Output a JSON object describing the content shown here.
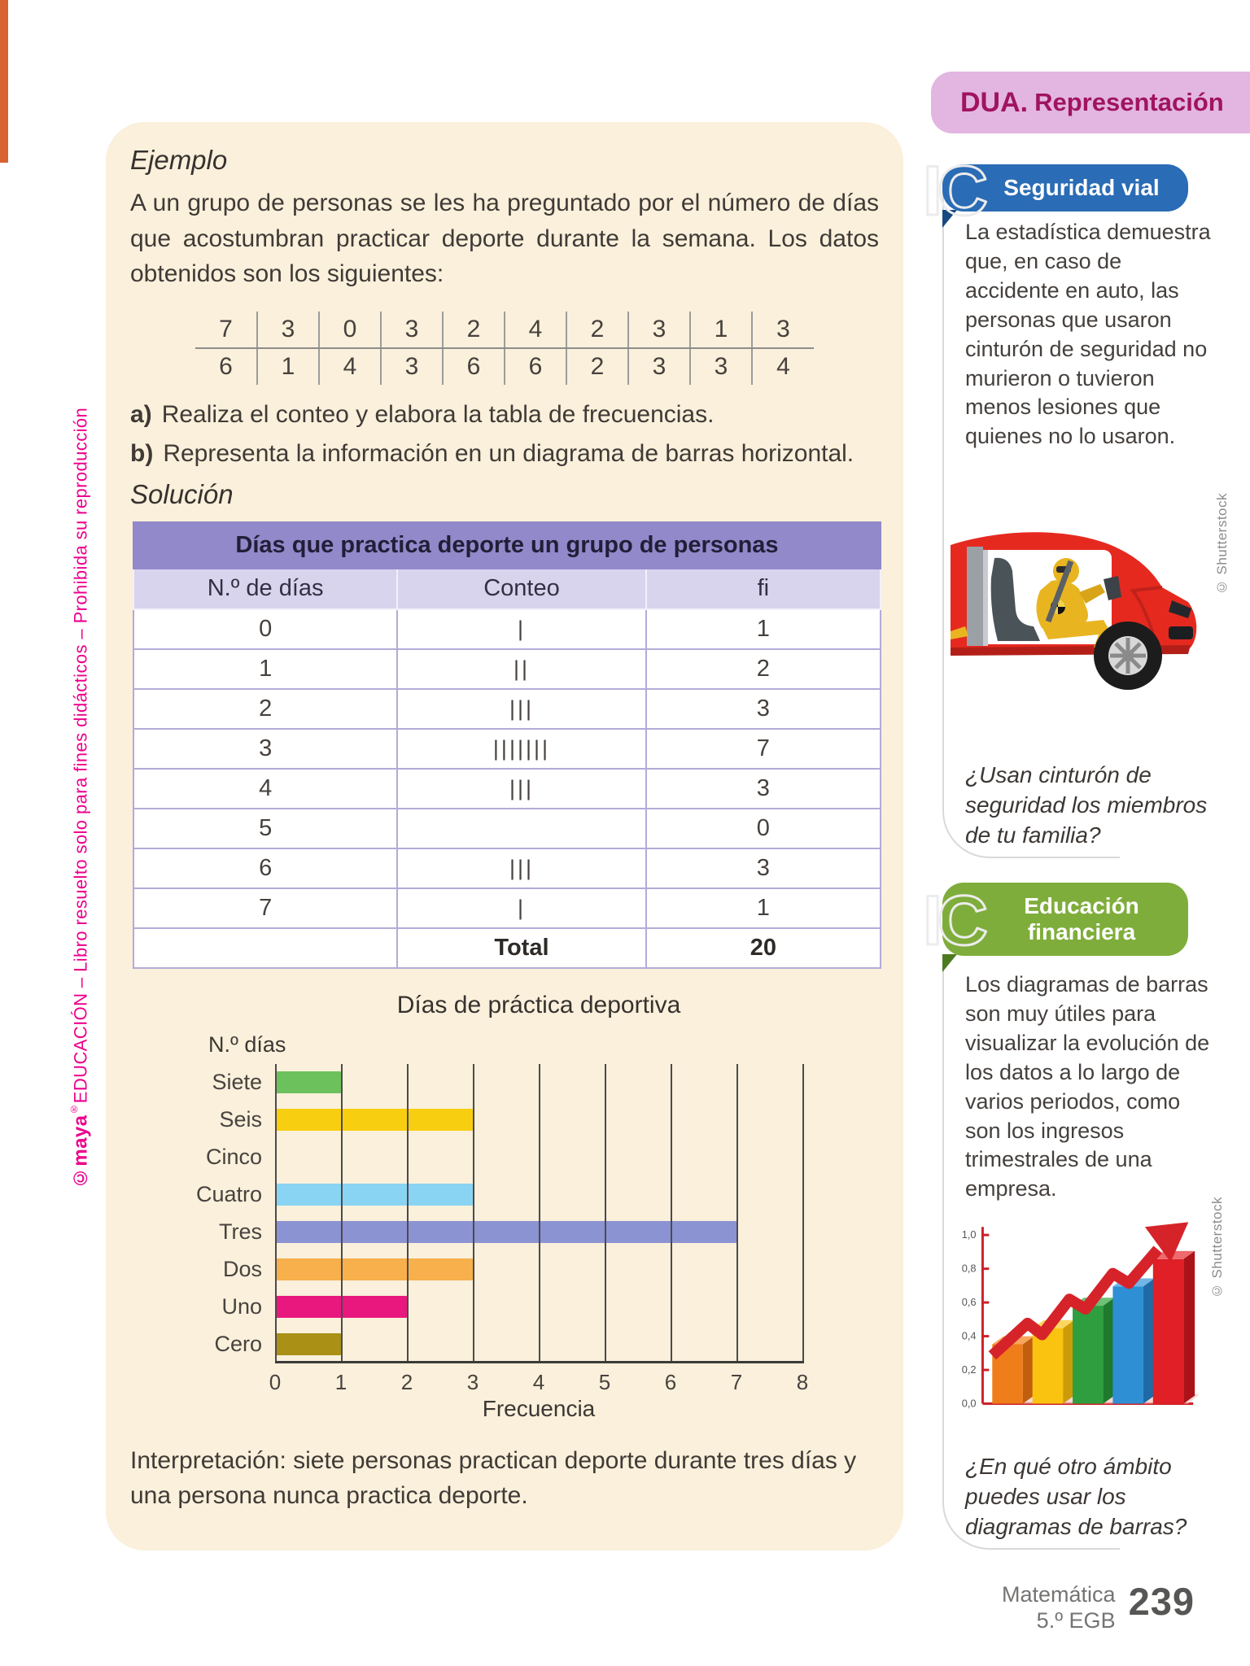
{
  "header": {
    "tag_bold": "DUA.",
    "tag_rest": "Representación"
  },
  "page": {
    "side_brand": "©maya",
    "side_brand_mark": "®",
    "side_rest": "EDUCACIÓN – Libro resuelto solo para fines didácticos – Prohibida su reproducción"
  },
  "main": {
    "example_heading": "Ejemplo",
    "intro_text": "A un grupo de personas se les ha preguntado por el número de días que acostumbran practicar deporte durante la semana. Los datos obtenidos son los siguientes:",
    "data_rows": [
      [
        "7",
        "3",
        "0",
        "3",
        "2",
        "4",
        "2",
        "3",
        "1",
        "3"
      ],
      [
        "6",
        "1",
        "4",
        "3",
        "6",
        "6",
        "2",
        "3",
        "3",
        "4"
      ]
    ],
    "task_a_label": "a)",
    "task_a_text": "Realiza el conteo y elabora la tabla de frecuencias.",
    "task_b_label": "b)",
    "task_b_text": "Representa la información en un diagrama de barras horizontal.",
    "solution_heading": "Solución",
    "freq_table": {
      "title": "Días que practica deporte un grupo de personas",
      "columns": [
        "N.º de días",
        "Conteo",
        "fi"
      ],
      "rows": [
        {
          "days": "0",
          "tally": "|",
          "fi": "1"
        },
        {
          "days": "1",
          "tally": "||",
          "fi": "2"
        },
        {
          "days": "2",
          "tally": "|||",
          "fi": "3"
        },
        {
          "days": "3",
          "tally": "|||||||",
          "fi": "7"
        },
        {
          "days": "4",
          "tally": "|||",
          "fi": "3"
        },
        {
          "days": "5",
          "tally": "",
          "fi": "0"
        },
        {
          "days": "6",
          "tally": "|||",
          "fi": "3"
        },
        {
          "days": "7",
          "tally": "|",
          "fi": "1"
        }
      ],
      "total_label": "Total",
      "total_value": "20"
    },
    "interpretation": "Interpretación: siete personas practican deporte durante tres días y una persona nunca practica deporte."
  },
  "chart_data": {
    "type": "bar",
    "orientation": "horizontal",
    "title": "Días de práctica deportiva",
    "ylabel": "N.º días",
    "xlabel": "Frecuencia",
    "categories": [
      "Siete",
      "Seis",
      "Cinco",
      "Cuatro",
      "Tres",
      "Dos",
      "Uno",
      "Cero"
    ],
    "values": [
      1,
      3,
      0,
      3,
      7,
      3,
      2,
      1
    ],
    "colors": [
      "#6dc15c",
      "#f8ce10",
      "",
      "#8ad4f3",
      "#8b93d3",
      "#f7b04b",
      "#e9187e",
      "#aa9015"
    ],
    "xlim": [
      0,
      8
    ],
    "xticks": [
      "0",
      "1",
      "2",
      "3",
      "4",
      "5",
      "6",
      "7",
      "8"
    ],
    "grid": true
  },
  "sidebar": {
    "sections": [
      {
        "logo_text": "IC",
        "tab": "Seguridad vial",
        "tab_color": "#2a6cb5",
        "body": "La estadística demuestra que, en caso de accidente en auto, las personas que usaron cinturón de seguridad no murieron o tuvieron menos lesiones que quienes no lo usaron.",
        "credit": "© Shutterstock",
        "question": "¿Usan cinturón de seguridad los miembros de tu familia?"
      },
      {
        "logo_text": "IC",
        "tab_lines": [
          "Educación",
          "financiera"
        ],
        "tab_color": "#7fad3b",
        "body": "Los diagramas de barras son muy útiles para visualizar la evolución de los datos a lo largo de varios periodos, como son los ingresos trimestrales de una empresa.",
        "credit": "© Shutterstock",
        "question": "¿En qué otro ámbito puedes usar los diagramas de barras?",
        "mini_axis": [
          "1,0",
          "0,8",
          "0,6",
          "0,4",
          "0,2",
          "0,0"
        ]
      }
    ]
  },
  "footer": {
    "subject": "Matemática",
    "grade": "5.º EGB",
    "page_number": "239"
  }
}
